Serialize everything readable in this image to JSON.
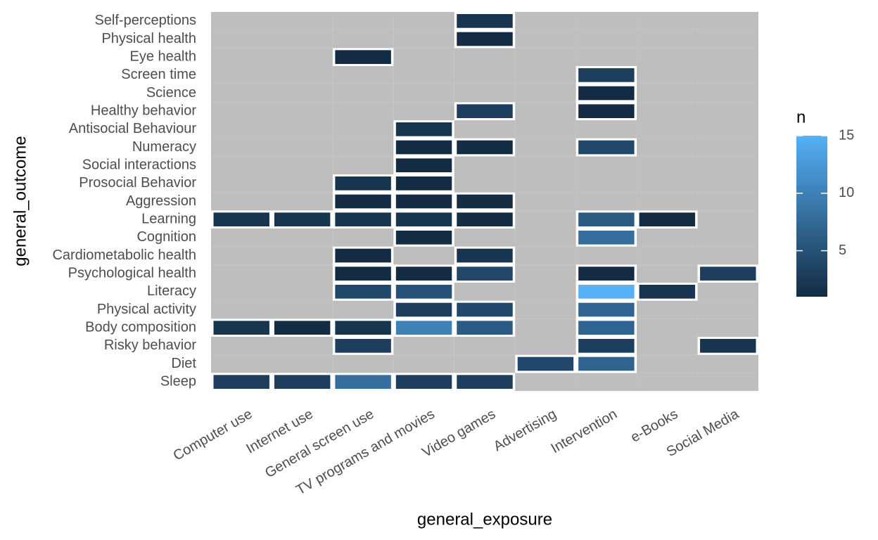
{
  "chart_data": {
    "type": "heatmap",
    "x_label": "general_exposure",
    "y_label": "general_outcome",
    "x": [
      "Computer use",
      "Internet use",
      "General screen use",
      "TV programs and movies",
      "Video games",
      "Advertising",
      "Intervention",
      "e-Books",
      "Social Media"
    ],
    "y": [
      "Sleep",
      "Diet",
      "Risky behavior",
      "Body composition",
      "Physical activity",
      "Literacy",
      "Psychological health",
      "Cardiometabolic health",
      "Cognition",
      "Learning",
      "Aggression",
      "Prosocial Behavior",
      "Social interactions",
      "Numeracy",
      "Antisocial Behaviour",
      "Healthy behavior",
      "Science",
      "Screen time",
      "Eye health",
      "Physical health",
      "Self-perceptions"
    ],
    "values": [
      [
        3,
        3,
        8,
        3,
        3,
        null,
        null,
        null,
        null
      ],
      [
        null,
        null,
        null,
        null,
        null,
        4,
        7,
        null,
        null
      ],
      [
        null,
        null,
        3,
        null,
        null,
        null,
        3,
        null,
        2
      ],
      [
        2,
        1,
        2,
        10,
        6,
        null,
        7,
        null,
        null
      ],
      [
        null,
        null,
        null,
        3,
        4,
        null,
        7,
        null,
        null
      ],
      [
        null,
        null,
        4,
        5,
        null,
        null,
        15,
        2,
        null
      ],
      [
        null,
        null,
        1,
        1,
        4,
        null,
        1,
        null,
        3
      ],
      [
        null,
        null,
        1,
        null,
        2,
        null,
        null,
        null,
        null
      ],
      [
        null,
        null,
        null,
        1,
        null,
        null,
        8,
        null,
        null
      ],
      [
        2,
        2,
        2,
        2,
        1,
        null,
        6,
        1,
        null
      ],
      [
        null,
        null,
        1,
        1,
        1,
        null,
        null,
        null,
        null
      ],
      [
        null,
        null,
        2,
        1,
        null,
        null,
        null,
        null,
        null
      ],
      [
        null,
        null,
        null,
        1,
        null,
        null,
        null,
        null,
        null
      ],
      [
        null,
        null,
        null,
        1,
        1,
        null,
        4,
        null,
        null
      ],
      [
        null,
        null,
        null,
        2,
        null,
        null,
        null,
        null,
        null
      ],
      [
        null,
        null,
        null,
        null,
        3,
        null,
        1,
        null,
        null
      ],
      [
        null,
        null,
        null,
        null,
        null,
        null,
        1,
        null,
        null
      ],
      [
        null,
        null,
        null,
        null,
        null,
        null,
        3,
        null,
        null
      ],
      [
        null,
        null,
        1,
        null,
        null,
        null,
        null,
        null,
        null
      ],
      [
        null,
        null,
        null,
        null,
        1,
        null,
        null,
        null,
        null
      ],
      [
        null,
        null,
        null,
        null,
        2,
        null,
        null,
        null,
        null
      ]
    ],
    "legend_title": "n",
    "legend": "right",
    "clim": [
      1,
      15
    ],
    "cticks": [
      5,
      10,
      15
    ],
    "low_color": "#132B43",
    "high_color": "#56B1F7",
    "empty_color": "#bebebe"
  }
}
